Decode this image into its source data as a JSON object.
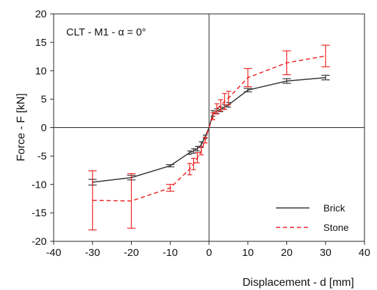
{
  "chart_data": {
    "type": "line",
    "title": "",
    "annotation": "CLT - M1 - α = 0°",
    "xlabel": "Displacement - d [mm]",
    "ylabel": "Force - F [kN]",
    "xlim": [
      -40,
      40
    ],
    "ylim": [
      -20,
      20
    ],
    "xticks": [
      -40,
      -30,
      -20,
      -10,
      0,
      10,
      20,
      30,
      40
    ],
    "yticks": [
      -20,
      -15,
      -10,
      -5,
      0,
      5,
      10,
      15,
      20
    ],
    "grid": false,
    "legend_position": "bottom-right",
    "series": [
      {
        "name": "Brick",
        "color": "#333333",
        "dash": "solid",
        "points": [
          {
            "x": -30,
            "y": -9.6,
            "err": 0.5
          },
          {
            "x": -20,
            "y": -8.8,
            "err": 0.4
          },
          {
            "x": -10,
            "y": -6.7,
            "err": 0.2
          },
          {
            "x": -5,
            "y": -4.4,
            "err": 0.3
          },
          {
            "x": -4,
            "y": -4.1,
            "err": 0.4
          },
          {
            "x": -3,
            "y": -3.7,
            "err": 0.4
          },
          {
            "x": -2,
            "y": -3.0,
            "err": 0.5
          },
          {
            "x": -1,
            "y": -1.6,
            "err": 0.3
          },
          {
            "x": 0,
            "y": 0.0,
            "err": 0
          },
          {
            "x": 1,
            "y": 2.5,
            "err": 0.5
          },
          {
            "x": 2,
            "y": 2.9,
            "err": 0.4
          },
          {
            "x": 3,
            "y": 3.2,
            "err": 0.4
          },
          {
            "x": 4,
            "y": 3.6,
            "err": 0.4
          },
          {
            "x": 5,
            "y": 4.0,
            "err": 0.4
          },
          {
            "x": 10,
            "y": 6.6,
            "err": 0.3
          },
          {
            "x": 20,
            "y": 8.2,
            "err": 0.4
          },
          {
            "x": 30,
            "y": 8.8,
            "err": 0.4
          }
        ]
      },
      {
        "name": "Stone",
        "color": "#ee2222",
        "dash": "dashed",
        "points": [
          {
            "x": -30,
            "y": -12.8,
            "err": 5.2
          },
          {
            "x": -20,
            "y": -12.9,
            "err": 4.8
          },
          {
            "x": -10,
            "y": -10.6,
            "err": 0.6
          },
          {
            "x": -5,
            "y": -7.3,
            "err": 1.0
          },
          {
            "x": -4,
            "y": -6.4,
            "err": 1.0
          },
          {
            "x": -3,
            "y": -5.3,
            "err": 0.9
          },
          {
            "x": -2,
            "y": -4.1,
            "err": 0.7
          },
          {
            "x": -1,
            "y": -2.2,
            "err": 0.5
          },
          {
            "x": 0,
            "y": 0.0,
            "err": 0
          },
          {
            "x": 1,
            "y": 2.0,
            "err": 0.6
          },
          {
            "x": 2,
            "y": 3.3,
            "err": 0.9
          },
          {
            "x": 3,
            "y": 3.9,
            "err": 1.0
          },
          {
            "x": 4,
            "y": 4.6,
            "err": 1.4
          },
          {
            "x": 5,
            "y": 5.2,
            "err": 1.2
          },
          {
            "x": 10,
            "y": 8.8,
            "err": 1.6
          },
          {
            "x": 20,
            "y": 11.4,
            "err": 2.1
          },
          {
            "x": 30,
            "y": 12.6,
            "err": 1.9
          }
        ]
      }
    ]
  }
}
